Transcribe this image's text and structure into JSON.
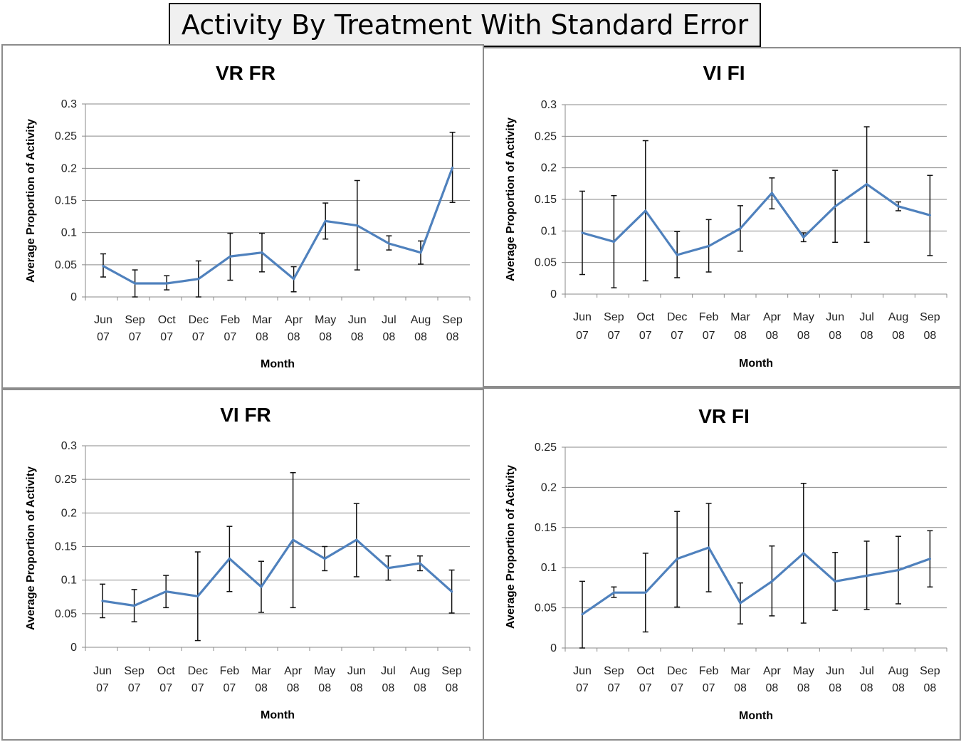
{
  "title": "Activity By Treatment With Standard Error",
  "chart_data": [
    {
      "type": "line",
      "title": "VR FR",
      "xlabel": "Month",
      "ylabel": "Average Proportion of Activity",
      "categories": [
        [
          "Jun",
          "07"
        ],
        [
          "Sep",
          "07"
        ],
        [
          "Oct",
          "07"
        ],
        [
          "Dec",
          "07"
        ],
        [
          "Feb",
          "07"
        ],
        [
          "Mar",
          "08"
        ],
        [
          "Apr",
          "08"
        ],
        [
          "May",
          "08"
        ],
        [
          "Jun",
          "08"
        ],
        [
          "Jul",
          "08"
        ],
        [
          "Aug",
          "08"
        ],
        [
          "Sep",
          "08"
        ]
      ],
      "values": [
        0.048,
        0.021,
        0.021,
        0.028,
        0.063,
        0.069,
        0.028,
        0.118,
        0.111,
        0.083,
        0.069,
        0.201
      ],
      "error_low": [
        0.031,
        0.0,
        0.011,
        0.0,
        0.026,
        0.039,
        0.008,
        0.09,
        0.042,
        0.073,
        0.051,
        0.147
      ],
      "error_high": [
        0.067,
        0.042,
        0.033,
        0.056,
        0.099,
        0.099,
        0.047,
        0.146,
        0.181,
        0.095,
        0.087,
        0.256
      ],
      "ylim": [
        0,
        0.3
      ],
      "yticks": [
        "0",
        "0.05",
        "0.1",
        "0.15",
        "0.2",
        "0.25",
        "0.3"
      ],
      "yticks_values": [
        0,
        0.05,
        0.1,
        0.15,
        0.2,
        0.25,
        0.3
      ],
      "grid": true,
      "line_color": "#4f81bd"
    },
    {
      "type": "line",
      "title": "VI FI",
      "xlabel": "Month",
      "ylabel": "Average Proportion of Activity",
      "categories": [
        [
          "Jun",
          "07"
        ],
        [
          "Sep",
          "07"
        ],
        [
          "Oct",
          "07"
        ],
        [
          "Dec",
          "07"
        ],
        [
          "Feb",
          "07"
        ],
        [
          "Mar",
          "08"
        ],
        [
          "Apr",
          "08"
        ],
        [
          "May",
          "08"
        ],
        [
          "Jun",
          "08"
        ],
        [
          "Jul",
          "08"
        ],
        [
          "Aug",
          "08"
        ],
        [
          "Sep",
          "08"
        ]
      ],
      "values": [
        0.097,
        0.083,
        0.132,
        0.062,
        0.076,
        0.104,
        0.16,
        0.09,
        0.139,
        0.174,
        0.139,
        0.125
      ],
      "error_low": [
        0.031,
        0.01,
        0.021,
        0.026,
        0.035,
        0.068,
        0.135,
        0.083,
        0.082,
        0.082,
        0.132,
        0.061
      ],
      "error_high": [
        0.163,
        0.156,
        0.243,
        0.099,
        0.118,
        0.14,
        0.184,
        0.097,
        0.196,
        0.265,
        0.146,
        0.188
      ],
      "ylim": [
        0,
        0.3
      ],
      "yticks": [
        "0",
        "0.05",
        "0.1",
        "0.15",
        "0.2",
        "0.25",
        "0.3"
      ],
      "yticks_values": [
        0,
        0.05,
        0.1,
        0.15,
        0.2,
        0.25,
        0.3
      ],
      "grid": true,
      "line_color": "#4f81bd"
    },
    {
      "type": "line",
      "title": "VI FR",
      "xlabel": "Month",
      "ylabel": "Average Proportion of Activity",
      "categories": [
        [
          "Jun",
          "07"
        ],
        [
          "Sep",
          "07"
        ],
        [
          "Oct",
          "07"
        ],
        [
          "Dec",
          "07"
        ],
        [
          "Feb",
          "07"
        ],
        [
          "Mar",
          "08"
        ],
        [
          "Apr",
          "08"
        ],
        [
          "May",
          "08"
        ],
        [
          "Jun",
          "08"
        ],
        [
          "Jul",
          "08"
        ],
        [
          "Aug",
          "08"
        ],
        [
          "Sep",
          "08"
        ]
      ],
      "values": [
        0.069,
        0.062,
        0.083,
        0.076,
        0.132,
        0.09,
        0.16,
        0.132,
        0.16,
        0.118,
        0.125,
        0.083
      ],
      "error_low": [
        0.044,
        0.038,
        0.059,
        0.01,
        0.083,
        0.052,
        0.059,
        0.114,
        0.105,
        0.1,
        0.114,
        0.051
      ],
      "error_high": [
        0.094,
        0.086,
        0.107,
        0.142,
        0.18,
        0.128,
        0.26,
        0.15,
        0.214,
        0.136,
        0.136,
        0.115
      ],
      "ylim": [
        0,
        0.3
      ],
      "yticks": [
        "0",
        "0.05",
        "0.1",
        "0.15",
        "0.2",
        "0.25",
        "0.3"
      ],
      "yticks_values": [
        0,
        0.05,
        0.1,
        0.15,
        0.2,
        0.25,
        0.3
      ],
      "grid": true,
      "line_color": "#4f81bd"
    },
    {
      "type": "line",
      "title": "VR FI",
      "xlabel": "Month",
      "ylabel": "Average Proportion of Activity",
      "categories": [
        [
          "Jun",
          "07"
        ],
        [
          "Sep",
          "07"
        ],
        [
          "Oct",
          "07"
        ],
        [
          "Dec",
          "07"
        ],
        [
          "Feb",
          "07"
        ],
        [
          "Mar",
          "08"
        ],
        [
          "Apr",
          "08"
        ],
        [
          "May",
          "08"
        ],
        [
          "Jun",
          "08"
        ],
        [
          "Jul",
          "08"
        ],
        [
          "Aug",
          "08"
        ],
        [
          "Sep",
          "08"
        ]
      ],
      "values": [
        0.042,
        0.069,
        0.069,
        0.111,
        0.125,
        0.056,
        0.083,
        0.118,
        0.083,
        0.09,
        0.097,
        0.111
      ],
      "error_low": [
        0.0,
        0.063,
        0.02,
        0.051,
        0.07,
        0.03,
        0.04,
        0.031,
        0.047,
        0.048,
        0.055,
        0.076
      ],
      "error_high": [
        0.083,
        0.076,
        0.118,
        0.17,
        0.18,
        0.081,
        0.127,
        0.205,
        0.119,
        0.133,
        0.139,
        0.146
      ],
      "ylim": [
        0,
        0.25
      ],
      "yticks": [
        "0",
        "0.05",
        "0.1",
        "0.15",
        "0.2",
        "0.25"
      ],
      "yticks_values": [
        0,
        0.05,
        0.1,
        0.15,
        0.2,
        0.25
      ],
      "grid": true,
      "line_color": "#4f81bd"
    }
  ]
}
